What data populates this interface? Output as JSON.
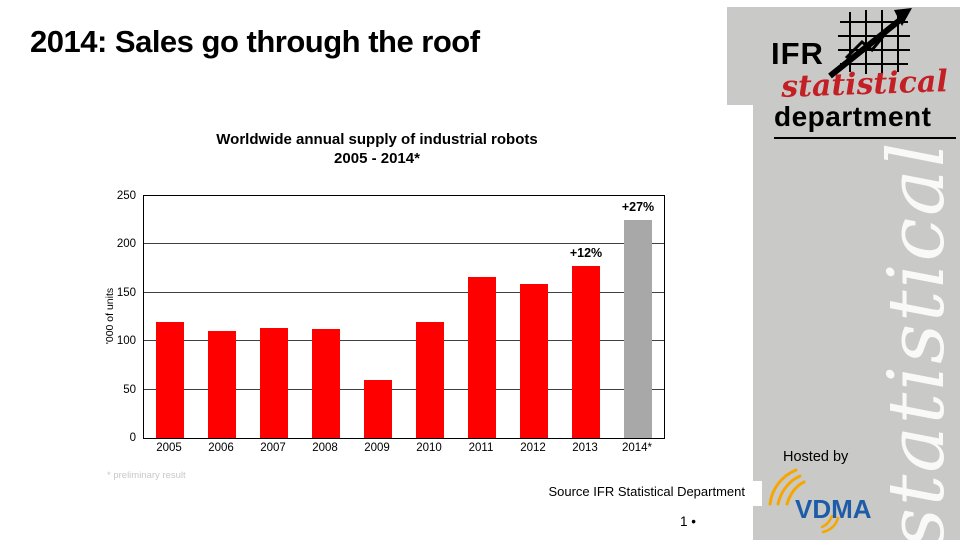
{
  "slide": {
    "title": "2014: Sales go through the roof",
    "footnote": "* preliminary result",
    "source": "Source IFR Statistical Department",
    "page_number": "1 •"
  },
  "logo": {
    "ifr": "IFR",
    "statistical": "statistical",
    "department": "department",
    "icon": "grid-arrow-chart-icon"
  },
  "sidebar": {
    "watermark": "statistical",
    "hosted_by": "Hosted by",
    "vdma": "VDMA"
  },
  "colors": {
    "panel_gray": "#c9c9c7",
    "bar_red": "#fe0000",
    "bar_gray": "#a8a8a8",
    "logo_red": "#c32026",
    "vdma_blue": "#1d5da8",
    "vdma_orange": "#f7a600"
  },
  "chart_data": {
    "type": "bar",
    "title": "Worldwide annual supply of industrial robots",
    "subtitle": "2005 - 2014*",
    "categories": [
      "2005",
      "2006",
      "2007",
      "2008",
      "2009",
      "2010",
      "2011",
      "2012",
      "2013",
      "2014*"
    ],
    "values": [
      120,
      111,
      114,
      113,
      60,
      120,
      166,
      159,
      178,
      225
    ],
    "bar_colors": [
      "#fe0000",
      "#fe0000",
      "#fe0000",
      "#fe0000",
      "#fe0000",
      "#fe0000",
      "#fe0000",
      "#fe0000",
      "#fe0000",
      "#a8a8a8"
    ],
    "xlabel": "",
    "ylabel": "'000 of units",
    "ylim": [
      0,
      250
    ],
    "yticks": [
      0,
      50,
      100,
      150,
      200,
      250
    ],
    "grid": true,
    "legend": false,
    "annotations": [
      {
        "category": "2013",
        "text": "+12%"
      },
      {
        "category": "2014*",
        "text": "+27%"
      }
    ]
  }
}
